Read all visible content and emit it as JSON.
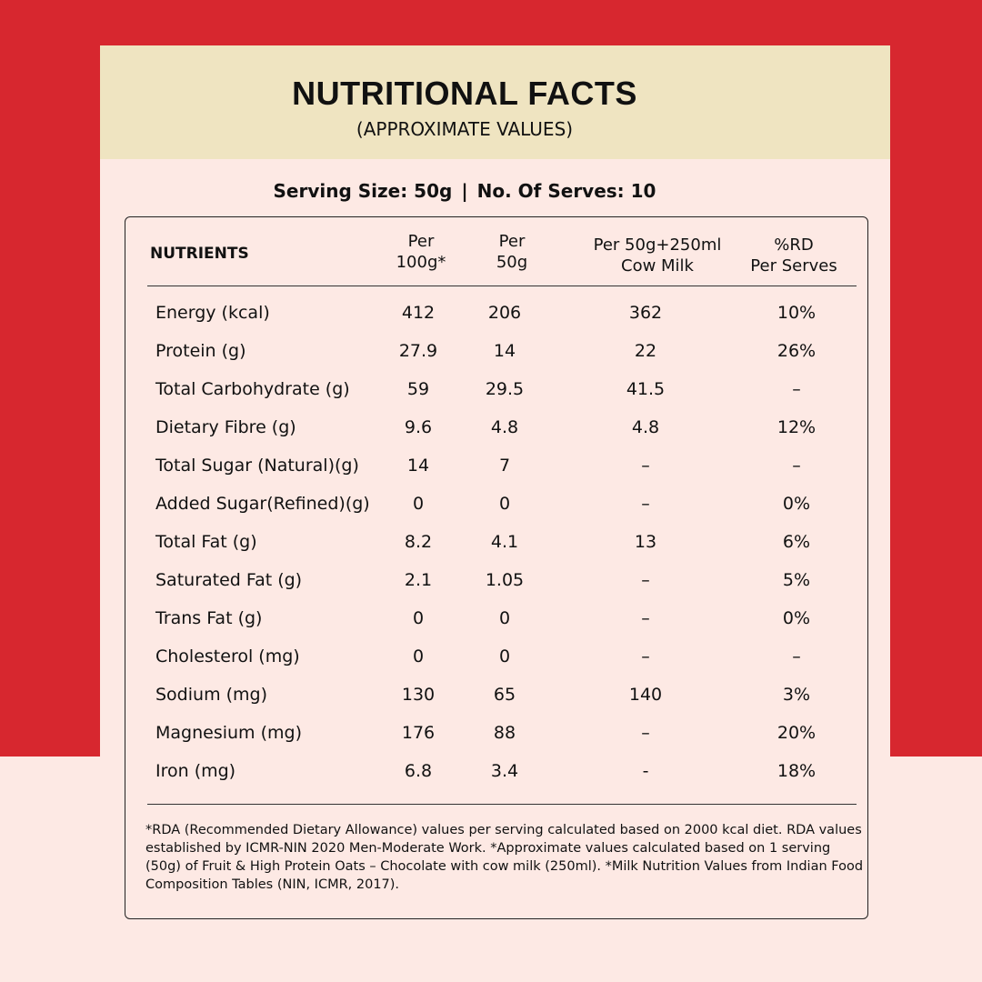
{
  "header": {
    "title": "NUTRITIONAL FACTS",
    "subtitle": "(APPROXIMATE VALUES)"
  },
  "serving": {
    "size": "Serving Size: 50g",
    "separator": "|",
    "serves": "No. Of Serves: 10"
  },
  "table": {
    "columns": {
      "nutrients": "NUTRIENTS",
      "per100_line1": "Per",
      "per100_line2": "100g*",
      "per50_line1": "Per",
      "per50_line2": "50g",
      "milk_line1": "Per 50g+250ml",
      "milk_line2": "Cow Milk",
      "rda_line1": "%RD",
      "rda_line2": "Per Serves"
    },
    "rows": [
      {
        "name": "Energy (kcal)",
        "per100": "412",
        "per50": "206",
        "milk": "362",
        "rda": "10%"
      },
      {
        "name": "Protein (g)",
        "per100": "27.9",
        "per50": "14",
        "milk": "22",
        "rda": "26%"
      },
      {
        "name": "Total Carbohydrate (g)",
        "per100": "59",
        "per50": "29.5",
        "milk": "41.5",
        "rda": "–"
      },
      {
        "name": "Dietary Fibre (g)",
        "per100": "9.6",
        "per50": "4.8",
        "milk": "4.8",
        "rda": "12%"
      },
      {
        "name": "Total Sugar (Natural)(g)",
        "per100": "14",
        "per50": "7",
        "milk": "–",
        "rda": "–"
      },
      {
        "name": "Added Sugar(Refined)(g)",
        "per100": "0",
        "per50": "0",
        "milk": "–",
        "rda": "0%"
      },
      {
        "name": "Total Fat (g)",
        "per100": "8.2",
        "per50": "4.1",
        "milk": "13",
        "rda": "6%"
      },
      {
        "name": "Saturated Fat (g)",
        "per100": "2.1",
        "per50": "1.05",
        "milk": "–",
        "rda": "5%"
      },
      {
        "name": "Trans Fat (g)",
        "per100": "0",
        "per50": "0",
        "milk": "–",
        "rda": "0%"
      },
      {
        "name": "Cholesterol (mg)",
        "per100": "0",
        "per50": "0",
        "milk": "–",
        "rda": "–"
      },
      {
        "name": "Sodium (mg)",
        "per100": "130",
        "per50": "65",
        "milk": "140",
        "rda": "3%"
      },
      {
        "name": "Magnesium (mg)",
        "per100": "176",
        "per50": "88",
        "milk": "–",
        "rda": "20%"
      },
      {
        "name": "Iron (mg)",
        "per100": "6.8",
        "per50": "3.4",
        "milk": "-",
        "rda": "18%"
      }
    ]
  },
  "footnote": "*RDA (Recommended Dietary Allowance) values per serving calculated based on 2000 kcal diet. RDA values established by ICMR-NIN 2020 Men-Moderate Work. *Approximate values calculated based on 1 serving (50g) of Fruit & High Protein Oats – Chocolate with cow milk (250ml). *Milk Nutrition Values from Indian Food Composition Tables (NIN, ICMR, 2017).",
  "colors": {
    "red_background": "#d7272f",
    "panel": "#fde9e4",
    "header_band": "#efe4c1"
  }
}
